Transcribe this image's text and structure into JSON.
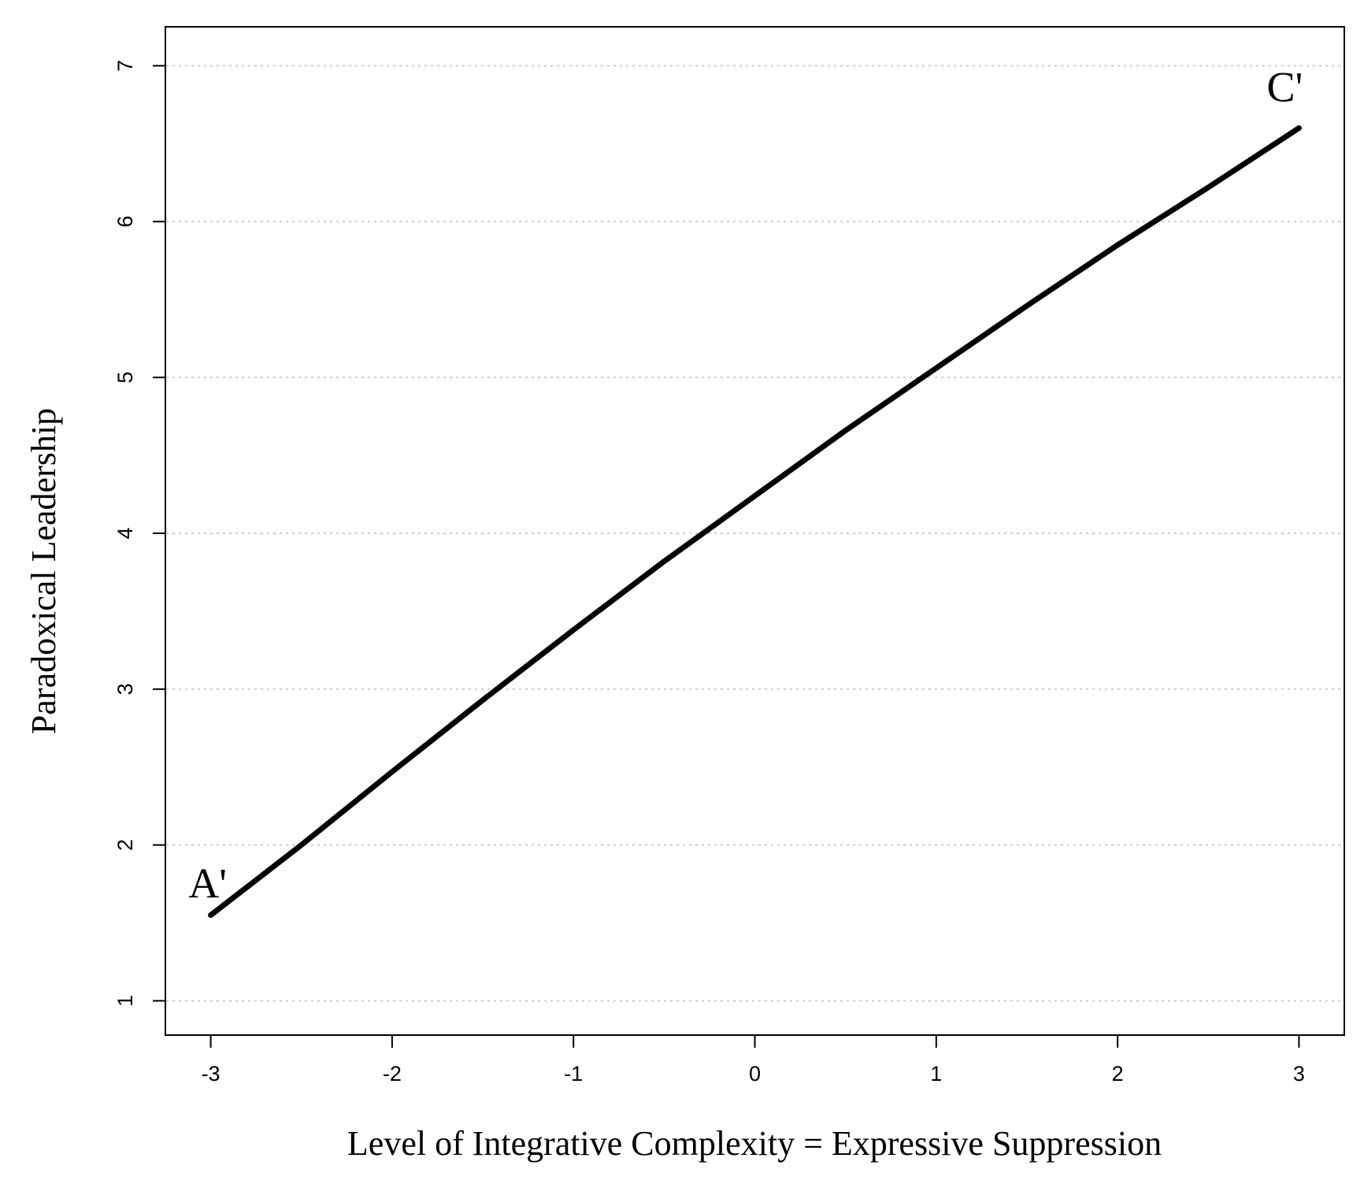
{
  "chart_data": {
    "type": "line",
    "xlabel": "Level of Integrative Complexity = Expressive Suppression",
    "ylabel": "Paradoxical Leadership",
    "xlim": [
      -3.25,
      3.25
    ],
    "ylim": [
      0.78,
      7.25
    ],
    "x_ticks": [
      -3,
      -2,
      -1,
      0,
      1,
      2,
      3
    ],
    "x_tick_labels": [
      "-3",
      "-2",
      "-1",
      "0",
      "1",
      "2",
      "3"
    ],
    "y_ticks": [
      1,
      2,
      3,
      4,
      5,
      6,
      7
    ],
    "y_tick_labels": [
      "1",
      "2",
      "3",
      "4",
      "5",
      "6",
      "7"
    ],
    "grid": "horizontal dotted",
    "series": [
      {
        "x": [
          -3,
          -2.5,
          -2,
          -1.5,
          -1,
          -0.5,
          0,
          0.5,
          1,
          1.5,
          2,
          2.5,
          3
        ],
        "y": [
          1.55,
          2.0,
          2.47,
          2.93,
          3.38,
          3.82,
          4.24,
          4.66,
          5.06,
          5.46,
          5.85,
          6.22,
          6.6
        ]
      }
    ],
    "annotations": [
      {
        "text": "A'",
        "x": -3,
        "y": 1.55
      },
      {
        "text": "C'",
        "x": 3,
        "y": 6.6
      }
    ],
    "line_color": "#000000",
    "grid_color": "#cccccc"
  }
}
